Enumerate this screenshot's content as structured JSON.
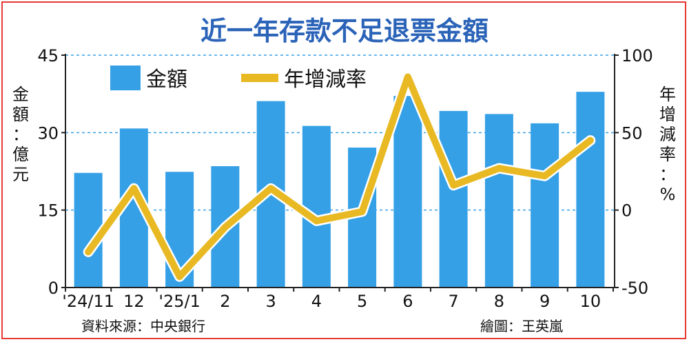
{
  "chart_data": {
    "type": "bar",
    "title": "近一年存款不足退票金額",
    "categories": [
      "'24/11",
      "12",
      "'25/1",
      "2",
      "3",
      "4",
      "5",
      "6",
      "7",
      "8",
      "9",
      "10"
    ],
    "series": [
      {
        "name": "金額",
        "type": "bar",
        "axis": "left",
        "color": "#35a0e6",
        "values": [
          22.2,
          30.8,
          22.4,
          23.5,
          36.1,
          31.3,
          27.1,
          37.1,
          34.2,
          33.6,
          31.8,
          37.9
        ]
      },
      {
        "name": "年增減率",
        "type": "line",
        "axis": "right",
        "color": "#e8b923",
        "values": [
          -27,
          14,
          -43,
          -11,
          14,
          -7,
          -1,
          86,
          16,
          27,
          22,
          45
        ]
      }
    ],
    "ylabel_left": "金額：億元",
    "ylabel_right": "年增減率：%",
    "ylim_left": [
      0,
      45
    ],
    "ylim_right": [
      -50,
      100
    ],
    "yticks_left": [
      "0",
      "15",
      "30",
      "45"
    ],
    "yticks_right": [
      "-50",
      "0",
      "50",
      "100"
    ],
    "grid": true,
    "legend": "top-left"
  },
  "source_text": "資料來源：中央銀行",
  "credit_text": "繪圖：王英嵐"
}
